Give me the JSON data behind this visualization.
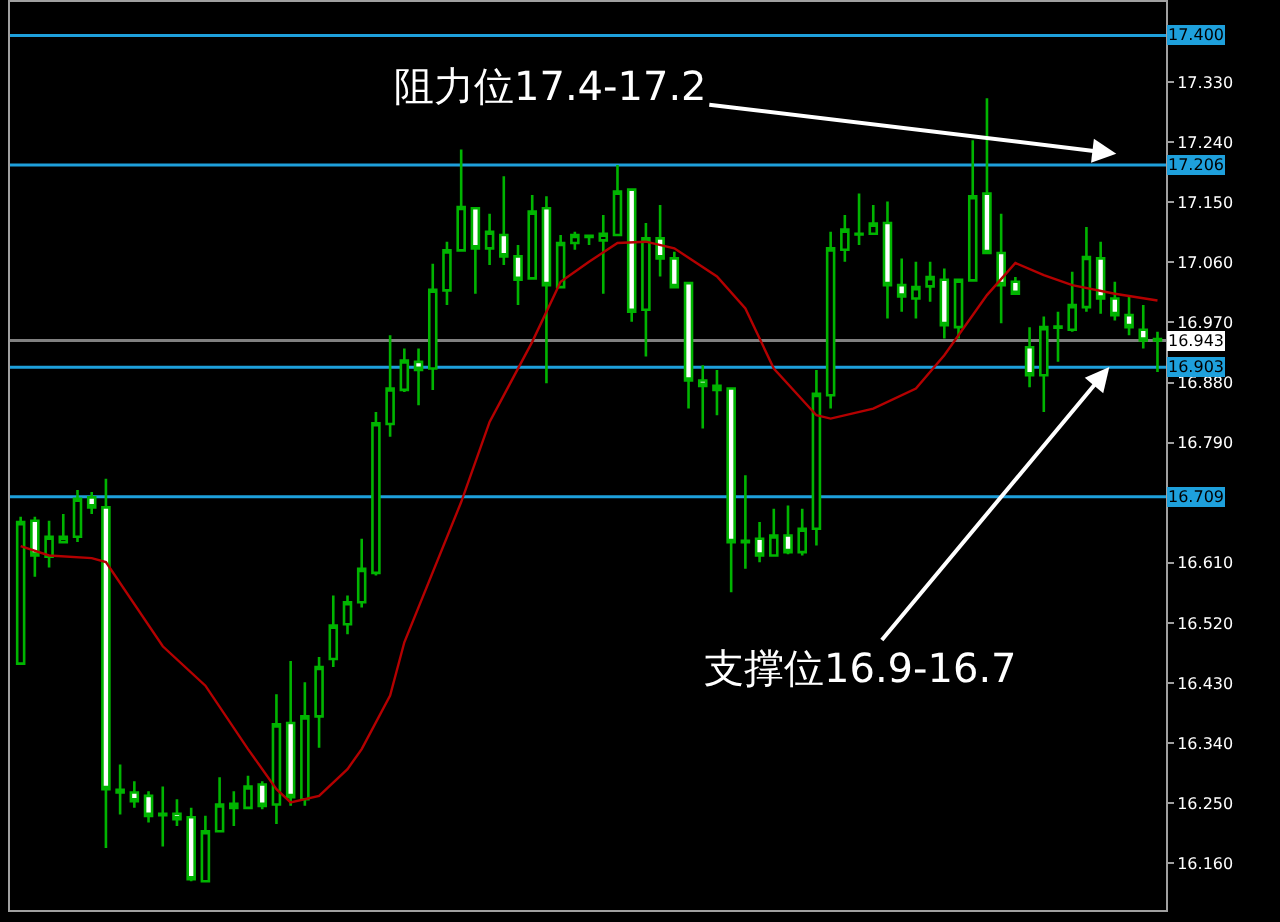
{
  "chart_data": {
    "type": "candlestick",
    "categories": [
      null,
      null,
      null,
      null,
      null,
      null,
      null,
      null,
      null,
      null,
      null,
      null,
      null,
      null,
      null,
      null,
      null,
      null,
      null,
      null,
      null,
      null,
      null,
      null,
      null,
      null,
      null,
      null,
      null,
      null,
      null,
      null,
      null,
      null,
      null,
      null,
      null,
      null,
      null,
      null,
      null,
      null,
      null,
      null,
      null,
      null,
      null,
      null,
      null,
      null,
      null,
      null,
      null,
      null,
      null,
      null,
      null,
      null,
      null,
      null,
      null,
      null,
      null,
      null,
      null,
      null,
      null,
      null,
      null,
      null,
      null,
      null,
      null,
      null,
      null,
      null,
      null,
      null,
      null,
      null,
      null
    ],
    "ylim": [
      16.09,
      17.45
    ],
    "yticks": [
      {
        "value": 16.16,
        "label": "16.160"
      },
      {
        "value": 16.25,
        "label": "16.250"
      },
      {
        "value": 16.34,
        "label": "16.340"
      },
      {
        "value": 16.43,
        "label": "16.430"
      },
      {
        "value": 16.52,
        "label": "16.520"
      },
      {
        "value": 16.61,
        "label": "16.610"
      },
      {
        "value": 16.79,
        "label": "16.790"
      },
      {
        "value": 16.88,
        "label": "16.880"
      },
      {
        "value": 16.97,
        "label": "16.970"
      },
      {
        "value": 17.06,
        "label": "17.060"
      },
      {
        "value": 17.15,
        "label": "17.150"
      },
      {
        "value": 17.24,
        "label": "17.240"
      },
      {
        "value": 17.33,
        "label": "17.330"
      }
    ],
    "tick_labels": "y",
    "series": [
      {
        "color": "#00b400",
        "ohlc": [
          [
            16.459,
            16.679,
            16.459,
            16.671
          ],
          [
            16.673,
            16.679,
            16.589,
            16.621
          ],
          [
            16.619,
            16.673,
            16.603,
            16.649
          ],
          [
            16.641,
            16.683,
            16.639,
            16.649
          ],
          [
            16.649,
            16.719,
            16.641,
            16.706
          ],
          [
            16.708,
            16.716,
            16.683,
            16.693
          ],
          [
            16.693,
            16.736,
            16.183,
            16.271
          ],
          [
            16.27,
            16.308,
            16.233,
            16.266
          ],
          [
            16.266,
            16.283,
            16.243,
            16.253
          ],
          [
            16.261,
            16.268,
            16.221,
            16.231
          ],
          [
            16.234,
            16.275,
            16.185,
            16.232
          ],
          [
            16.234,
            16.256,
            16.216,
            16.226
          ],
          [
            16.229,
            16.243,
            16.133,
            16.136
          ],
          [
            16.133,
            16.231,
            16.131,
            16.208
          ],
          [
            16.208,
            16.289,
            16.208,
            16.248
          ],
          [
            16.249,
            16.268,
            16.216,
            16.243
          ],
          [
            16.243,
            16.291,
            16.241,
            16.275
          ],
          [
            16.278,
            16.283,
            16.241,
            16.246
          ],
          [
            16.248,
            16.413,
            16.219,
            16.368
          ],
          [
            16.37,
            16.463,
            16.246,
            16.259
          ],
          [
            16.256,
            16.431,
            16.246,
            16.38
          ],
          [
            16.38,
            16.469,
            16.333,
            16.454
          ],
          [
            16.466,
            16.561,
            16.454,
            16.516
          ],
          [
            16.518,
            16.561,
            16.503,
            16.551
          ],
          [
            16.551,
            16.646,
            16.543,
            16.601
          ],
          [
            16.595,
            16.836,
            16.591,
            16.819
          ],
          [
            16.818,
            16.951,
            16.799,
            16.871
          ],
          [
            16.869,
            16.931,
            16.866,
            16.913
          ],
          [
            16.911,
            16.931,
            16.846,
            16.899
          ],
          [
            16.901,
            17.058,
            16.869,
            17.019
          ],
          [
            17.018,
            17.091,
            16.996,
            17.078
          ],
          [
            17.078,
            17.229,
            17.076,
            17.143
          ],
          [
            17.141,
            17.141,
            17.013,
            17.081
          ],
          [
            17.081,
            17.133,
            17.056,
            17.106
          ],
          [
            17.101,
            17.189,
            17.056,
            17.069
          ],
          [
            17.069,
            17.086,
            16.996,
            17.034
          ],
          [
            17.036,
            17.161,
            17.034,
            17.136
          ],
          [
            17.141,
            17.159,
            16.879,
            17.026
          ],
          [
            17.023,
            17.101,
            17.021,
            17.089
          ],
          [
            17.089,
            17.106,
            17.079,
            17.101
          ],
          [
            17.098,
            17.101,
            17.086,
            17.1
          ],
          [
            17.093,
            17.131,
            17.013,
            17.103
          ],
          [
            17.101,
            17.206,
            17.099,
            17.166
          ],
          [
            17.169,
            17.171,
            16.971,
            16.986
          ],
          [
            16.989,
            17.119,
            16.919,
            17.096
          ],
          [
            17.096,
            17.146,
            17.039,
            17.066
          ],
          [
            17.066,
            17.076,
            17.021,
            17.023
          ],
          [
            17.029,
            17.031,
            16.841,
            16.883
          ],
          [
            16.883,
            16.906,
            16.811,
            16.875
          ],
          [
            16.875,
            16.899,
            16.831,
            16.869
          ],
          [
            16.871,
            16.871,
            16.566,
            16.641
          ],
          [
            16.643,
            16.741,
            16.601,
            16.641
          ],
          [
            16.646,
            16.671,
            16.611,
            16.621
          ],
          [
            16.621,
            16.691,
            16.619,
            16.651
          ],
          [
            16.651,
            16.696,
            16.623,
            16.626
          ],
          [
            16.626,
            16.691,
            16.621,
            16.661
          ],
          [
            16.661,
            16.899,
            16.636,
            16.863
          ],
          [
            16.861,
            17.106,
            16.841,
            17.081
          ],
          [
            17.079,
            17.131,
            17.061,
            17.109
          ],
          [
            17.102,
            17.163,
            17.086,
            17.103
          ],
          [
            17.103,
            17.146,
            17.101,
            17.118
          ],
          [
            17.119,
            17.151,
            16.976,
            17.026
          ],
          [
            17.026,
            17.066,
            16.986,
            17.009
          ],
          [
            17.006,
            17.061,
            16.976,
            17.023
          ],
          [
            17.024,
            17.061,
            17.001,
            17.038
          ],
          [
            17.034,
            17.051,
            16.946,
            16.966
          ],
          [
            16.963,
            17.036,
            16.946,
            17.034
          ],
          [
            17.033,
            17.243,
            17.031,
            17.159
          ],
          [
            17.163,
            17.306,
            17.073,
            17.074
          ],
          [
            17.074,
            17.133,
            16.969,
            17.026
          ],
          [
            17.031,
            17.038,
            17.011,
            17.013
          ],
          [
            16.933,
            16.963,
            16.873,
            16.891
          ],
          [
            16.891,
            16.979,
            16.836,
            16.963
          ],
          [
            16.962,
            16.986,
            16.911,
            16.964
          ],
          [
            16.959,
            17.046,
            16.956,
            16.996
          ],
          [
            16.993,
            17.113,
            16.986,
            17.068
          ],
          [
            17.066,
            17.091,
            16.983,
            17.006
          ],
          [
            17.006,
            17.031,
            16.973,
            16.981
          ],
          [
            16.981,
            17.011,
            16.951,
            16.963
          ],
          [
            16.959,
            16.996,
            16.931,
            16.943
          ],
          [
            16.945,
            16.956,
            16.896,
            16.943
          ]
        ]
      },
      {
        "type": "line",
        "color": "#b40000",
        "values": [
          16.635,
          null,
          16.621,
          null,
          null,
          16.617,
          16.611,
          null,
          null,
          null,
          16.485,
          null,
          null,
          16.426,
          null,
          null,
          16.331,
          null,
          16.271,
          16.251,
          null,
          16.261,
          null,
          16.301,
          16.331,
          null,
          16.411,
          16.491,
          null,
          null,
          null,
          16.701,
          null,
          16.821,
          null,
          null,
          16.941,
          null,
          17.031,
          null,
          17.061,
          null,
          17.089,
          null,
          17.091,
          null,
          17.081,
          null,
          null,
          17.039,
          null,
          16.991,
          null,
          16.901,
          null,
          null,
          16.831,
          16.826,
          null,
          null,
          16.841,
          null,
          null,
          16.871,
          null,
          16.921,
          null,
          null,
          17.011,
          null,
          17.059,
          null,
          17.041,
          null,
          17.026,
          null,
          null,
          17.013,
          null,
          null,
          17.003
        ]
      }
    ],
    "ref_lines": [
      {
        "axis": "y",
        "value": 17.4,
        "label": "17.400",
        "color": "#1ea0dc"
      },
      {
        "axis": "y",
        "value": 17.206,
        "label": "17.206",
        "color": "#1ea0dc"
      },
      {
        "axis": "y",
        "value": 16.943,
        "label": "16.943",
        "color": "#808080"
      },
      {
        "axis": "y",
        "value": 16.903,
        "label": "16.903",
        "color": "#1ea0dc"
      },
      {
        "axis": "y",
        "value": 16.709,
        "label": "16.709",
        "color": "#1ea0dc"
      }
    ],
    "annotations": [
      "阻力位17.4-17.2",
      "支撑位16.9-16.7"
    ]
  }
}
